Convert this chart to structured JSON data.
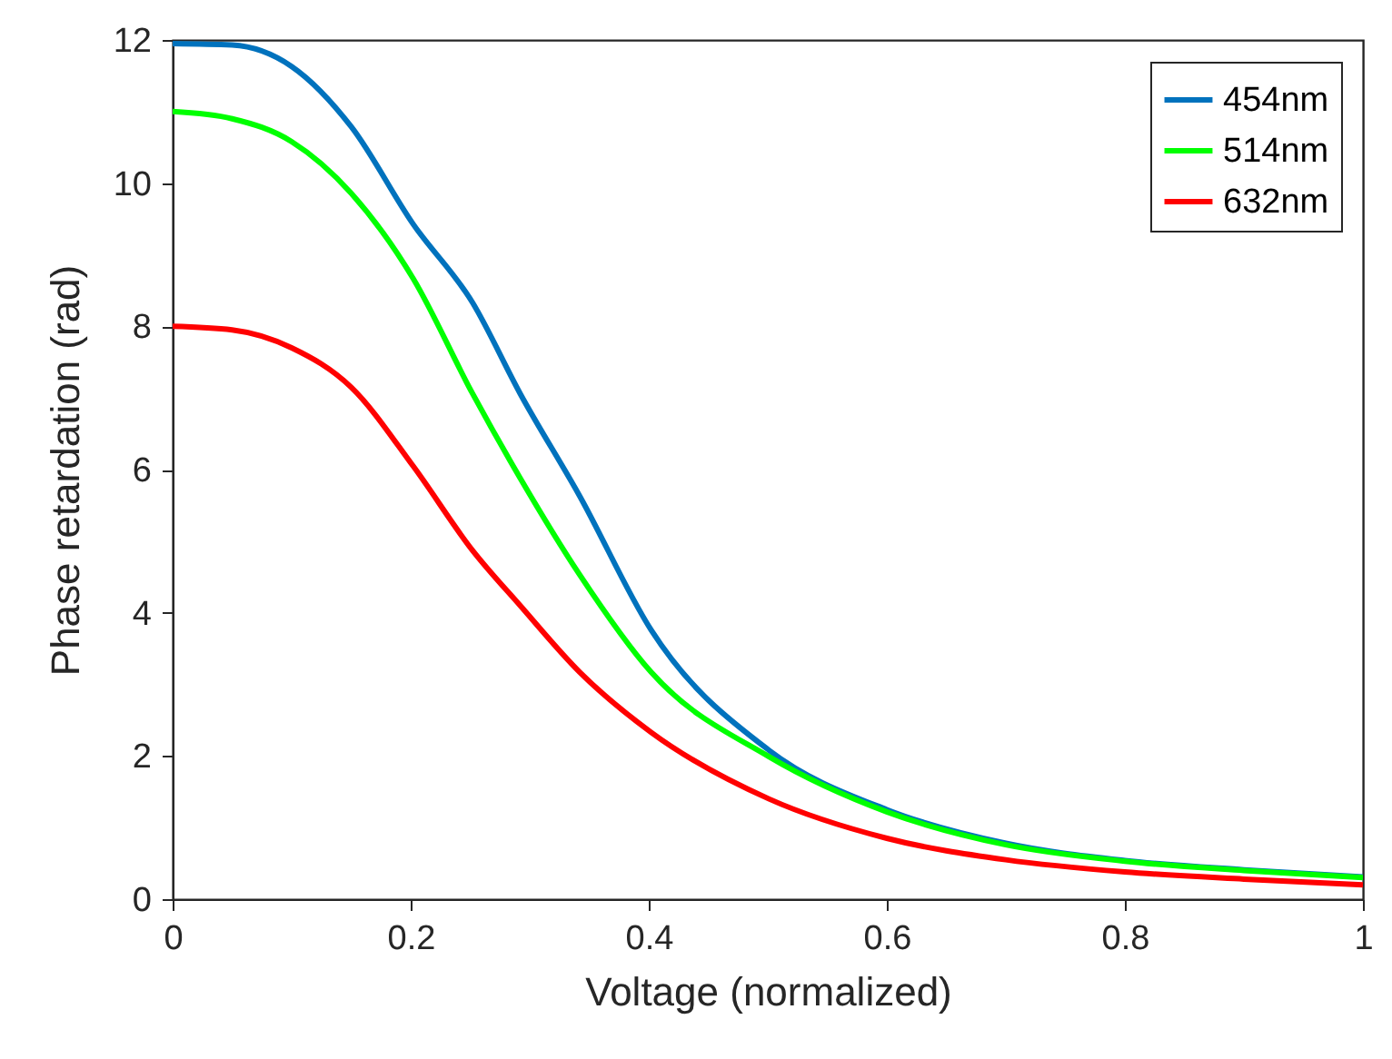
{
  "chart_data": {
    "type": "line",
    "xlabel": "Voltage (normalized)",
    "ylabel": "Phase retardation (rad)",
    "x": [
      0,
      0.05,
      0.1,
      0.15,
      0.202,
      0.252,
      0.292,
      0.342,
      0.402,
      0.501,
      0.6,
      0.7,
      0.8,
      0.9,
      1
    ],
    "series": [
      {
        "name": "454nm",
        "color": "#0072bd",
        "values": [
          11.95,
          11.93,
          11.63,
          10.79,
          9.43,
          8.33,
          7.06,
          5.63,
          3.76,
          2.08,
          1.25,
          0.78,
          0.54,
          0.41,
          0.31
        ]
      },
      {
        "name": "514nm",
        "color": "#00ff00",
        "values": [
          11.0,
          10.9,
          10.58,
          9.86,
          8.67,
          7.06,
          5.88,
          4.53,
          3.17,
          1.99,
          1.22,
          0.76,
          0.53,
          0.4,
          0.3
        ]
      },
      {
        "name": "632nm",
        "color": "#ff0000",
        "values": [
          8.0,
          7.95,
          7.7,
          7.15,
          6.05,
          4.87,
          4.1,
          3.17,
          2.33,
          1.4,
          0.85,
          0.55,
          0.38,
          0.28,
          0.2
        ]
      }
    ],
    "xlim": [
      0,
      1
    ],
    "xticks": [
      0,
      0.2,
      0.4,
      0.6,
      0.8,
      1
    ],
    "ylim": [
      0,
      12
    ],
    "yticks": [
      0,
      2,
      4,
      6,
      8,
      10,
      12
    ],
    "grid": false,
    "legend": "top right"
  }
}
